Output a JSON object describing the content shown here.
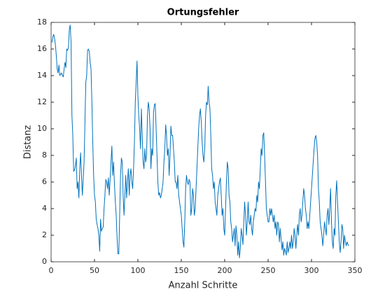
{
  "chart_data": {
    "type": "line",
    "title": "Ortungsfehler",
    "xlabel": "Anzahl Schritte",
    "ylabel": "Distanz",
    "xlim": [
      0,
      350
    ],
    "ylim": [
      0,
      18
    ],
    "xticks": [
      0,
      50,
      100,
      150,
      200,
      250,
      300,
      350
    ],
    "yticks": [
      0,
      2,
      4,
      6,
      8,
      10,
      12,
      14,
      16,
      18
    ],
    "grid": false,
    "x": [
      1,
      2,
      3,
      4,
      5,
      6,
      7,
      8,
      9,
      10,
      11,
      12,
      13,
      14,
      15,
      16,
      17,
      18,
      19,
      20,
      21,
      22,
      23,
      24,
      25,
      26,
      27,
      28,
      29,
      30,
      31,
      32,
      33,
      34,
      35,
      36,
      37,
      38,
      39,
      40,
      41,
      42,
      43,
      44,
      45,
      46,
      47,
      48,
      49,
      50,
      51,
      52,
      53,
      54,
      55,
      56,
      57,
      58,
      59,
      60,
      61,
      62,
      63,
      64,
      65,
      66,
      67,
      68,
      69,
      70,
      71,
      72,
      73,
      74,
      75,
      76,
      77,
      78,
      79,
      80,
      81,
      82,
      83,
      84,
      85,
      86,
      87,
      88,
      89,
      90,
      91,
      92,
      93,
      94,
      95,
      96,
      97,
      98,
      99,
      100,
      101,
      102,
      103,
      104,
      105,
      106,
      107,
      108,
      109,
      110,
      111,
      112,
      113,
      114,
      115,
      116,
      117,
      118,
      119,
      120,
      121,
      122,
      123,
      124,
      125,
      126,
      127,
      128,
      129,
      130,
      131,
      132,
      133,
      134,
      135,
      136,
      137,
      138,
      139,
      140,
      141,
      142,
      143,
      144,
      145,
      146,
      147,
      148,
      149,
      150,
      151,
      152,
      153,
      154,
      155,
      156,
      157,
      158,
      159,
      160,
      161,
      162,
      163,
      164,
      165,
      166,
      167,
      168,
      169,
      170,
      171,
      172,
      173,
      174,
      175,
      176,
      177,
      178,
      179,
      180,
      181,
      182,
      183,
      184,
      185,
      186,
      187,
      188,
      189,
      190,
      191,
      192,
      193,
      194,
      195,
      196,
      197,
      198,
      199,
      200,
      201,
      202,
      203,
      204,
      205,
      206,
      207,
      208,
      209,
      210,
      211,
      212,
      213,
      214,
      215,
      216,
      217,
      218,
      219,
      220,
      221,
      222,
      223,
      224,
      225,
      226,
      227,
      228,
      229,
      230,
      231,
      232,
      233,
      234,
      235,
      236,
      237,
      238,
      239,
      240,
      241,
      242,
      243,
      244,
      245,
      246,
      247,
      248,
      249,
      250,
      251,
      252,
      253,
      254,
      255,
      256,
      257,
      258,
      259,
      260,
      261,
      262,
      263,
      264,
      265,
      266,
      267,
      268,
      269,
      270,
      271,
      272,
      273,
      274,
      275,
      276,
      277,
      278,
      279,
      280,
      281,
      282,
      283,
      284,
      285,
      286,
      287,
      288,
      289,
      290,
      291,
      292,
      293,
      294,
      295,
      296,
      297,
      298,
      299,
      300,
      301,
      302,
      303,
      304,
      305,
      306,
      307,
      308,
      309,
      310,
      311,
      312,
      313,
      314,
      315,
      316,
      317,
      318,
      319,
      320,
      321,
      322,
      323,
      324,
      325,
      326,
      327,
      328,
      329,
      330,
      331,
      332,
      333,
      334,
      335,
      336,
      337,
      338,
      339,
      340,
      341,
      342,
      343
    ],
    "series": [
      {
        "color": "#0072bd",
        "values": [
          16.5,
          16.9,
          17.1,
          16.8,
          16.3,
          15.5,
          14.5,
          14.2,
          14.8,
          14.0,
          14.1,
          14.2,
          14.0,
          13.9,
          14.5,
          15.0,
          14.6,
          16.0,
          15.9,
          16.1,
          17.5,
          17.8,
          16.5,
          11,
          9.5,
          6.8,
          6.9,
          7.2,
          7.8,
          5.5,
          6.0,
          4.8,
          7.0,
          8.2,
          6.5,
          5.0,
          6.2,
          7.5,
          10.5,
          13.5,
          14.0,
          15.9,
          16.0,
          15.8,
          15.0,
          14.5,
          12,
          9,
          6.5,
          5.0,
          4.5,
          3.2,
          2.8,
          2.5,
          2.0,
          0.8,
          3.2,
          2.3,
          2.5,
          2.6,
          4.0,
          5.0,
          6.2,
          6.0,
          5.5,
          6.3,
          5.0,
          6.2,
          7.5,
          8.7,
          6.5,
          7.5,
          5.8,
          4.5,
          3.5,
          1.8,
          0.6,
          0.6,
          3.5,
          6.5,
          7.8,
          7.5,
          5.0,
          3.5,
          5.0,
          6.5,
          4.8,
          6.0,
          7.0,
          5.0,
          6.5,
          7.0,
          6.0,
          5.5,
          7.0,
          9.0,
          12.0,
          13.5,
          15.1,
          12.5,
          11.0,
          10.0,
          8.5,
          11.5,
          9.5,
          7.5,
          7.0,
          8.5,
          7.5,
          8.0,
          11.0,
          12.0,
          11.5,
          10.0,
          7.0,
          8.5,
          8.0,
          11.2,
          11.8,
          11.9,
          10.0,
          8.0,
          6.0,
          5.0,
          5.2,
          4.8,
          5.0,
          5.5,
          6.0,
          7.5,
          8.5,
          10.3,
          9.5,
          8.0,
          8.5,
          6.5,
          8.0,
          10.2,
          9.5,
          9.5,
          8.5,
          7.5,
          6.0,
          6.0,
          5.5,
          6.5,
          5.0,
          4.5,
          4.0,
          3.5,
          2.5,
          1.5,
          1.1,
          3.0,
          5.5,
          6.5,
          6.0,
          5.8,
          6.2,
          6.0,
          3.5,
          4.0,
          5.5,
          5.0,
          3.5,
          4.0,
          5.5,
          7.0,
          8.5,
          10.0,
          11.0,
          11.5,
          10.5,
          9.0,
          8.0,
          7.5,
          8.5,
          11.0,
          12.0,
          11.8,
          13.2,
          12.0,
          11.5,
          9.5,
          7.0,
          6.5,
          5.5,
          6.0,
          4.5,
          4.0,
          3.5,
          5.0,
          5.5,
          6.0,
          6.3,
          5.0,
          3.5,
          4.0,
          2.5,
          2.0,
          4.0,
          6.0,
          7.5,
          7.0,
          5.0,
          4.5,
          3.0,
          2.5,
          1.5,
          2.0,
          2.5,
          1.2,
          2.7,
          2.0,
          0.5,
          1.5,
          0.3,
          1.0,
          2.5,
          2.0,
          1.3,
          3.0,
          4.5,
          3.5,
          2.0,
          3.0,
          4.5,
          3.0,
          2.8,
          3.5,
          2.5,
          2.0,
          3.0,
          3.5,
          4.0,
          3.8,
          5.0,
          4.5,
          6.0,
          5.5,
          7.0,
          8.5,
          8.0,
          9.5,
          9.7,
          8.0,
          6.0,
          4.0,
          3.5,
          3.0,
          3.0,
          4.0,
          3.5,
          4.0,
          3.5,
          3.0,
          3.5,
          2.5,
          3.0,
          2.0,
          3.0,
          2.8,
          1.5,
          2.5,
          1.7,
          0.9,
          1.5,
          0.5,
          1.0,
          0.8,
          0.5,
          1.5,
          0.7,
          1.0,
          1.5,
          1.0,
          2.0,
          1.0,
          1.5,
          2.5,
          2.0,
          1.0,
          2.0,
          2.8,
          2.0,
          3.5,
          4.0,
          3.0,
          3.5,
          4.5,
          5.5,
          5.0,
          4.0,
          3.5,
          2.5,
          3.0,
          2.5,
          3.5,
          4.5,
          5.5,
          6.5,
          7.5,
          8.5,
          9.3,
          9.5,
          9.0,
          8.0,
          5.5,
          4.5,
          3.0,
          2.5,
          2.0,
          1.2,
          2.0,
          3.0,
          2.5,
          2.0,
          3.5,
          4.0,
          2.8,
          4.0,
          5.5,
          3.0,
          1.5,
          1.0,
          2.5,
          2.0,
          5.0,
          6.1,
          4.5,
          3.0,
          1.5,
          0.7,
          1.5,
          2.8,
          2.5,
          1.0,
          2.0,
          1.5,
          1.2,
          1.5,
          1.3,
          1.2
        ]
      }
    ]
  }
}
